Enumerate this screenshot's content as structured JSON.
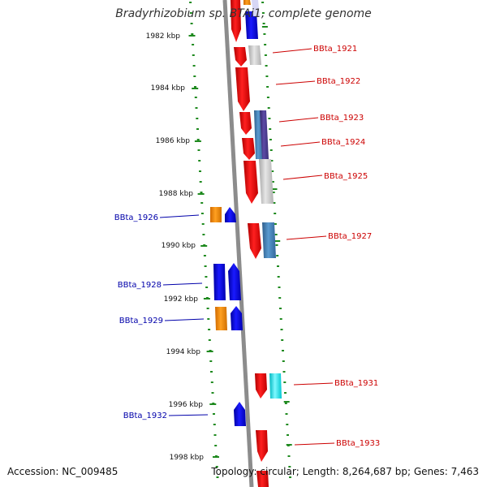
{
  "title": "Bradyrhizobium sp. BTAi1, complete genome",
  "accession_text": "Accession: NC_009485",
  "topology_text": "Topology: circular; Length: 8,264,687 bp; Genes: 7,463",
  "colors": {
    "backbone": "#8c8c8c",
    "tick": "#1f8a1f",
    "right_label": "#cc0000",
    "left_label": "#0000aa",
    "gene_red": "#ee0000",
    "gene_blue": "#0000ee",
    "gene_orange": "#ff8c00",
    "gene_grey": "#c8c8c8",
    "gene_steel": "#4682b4",
    "gene_purple": "#4b3a8c",
    "gene_cyan": "#00e5ee"
  },
  "kbp_labels": [
    "1982 kbp",
    "1984 kbp",
    "1986 kbp",
    "1988 kbp",
    "1990 kbp",
    "1992 kbp",
    "1994 kbp",
    "1996 kbp",
    "1998 kbp"
  ],
  "right_labels": [
    "BBta_1921",
    "BBta_1922",
    "BBta_1923",
    "BBta_1924",
    "BBta_1925",
    "BBta_1927",
    "BBta_1931",
    "BBta_1933"
  ],
  "left_labels": [
    "BBta_1926",
    "BBta_1928",
    "BBta_1929",
    "BBta_1932"
  ]
}
